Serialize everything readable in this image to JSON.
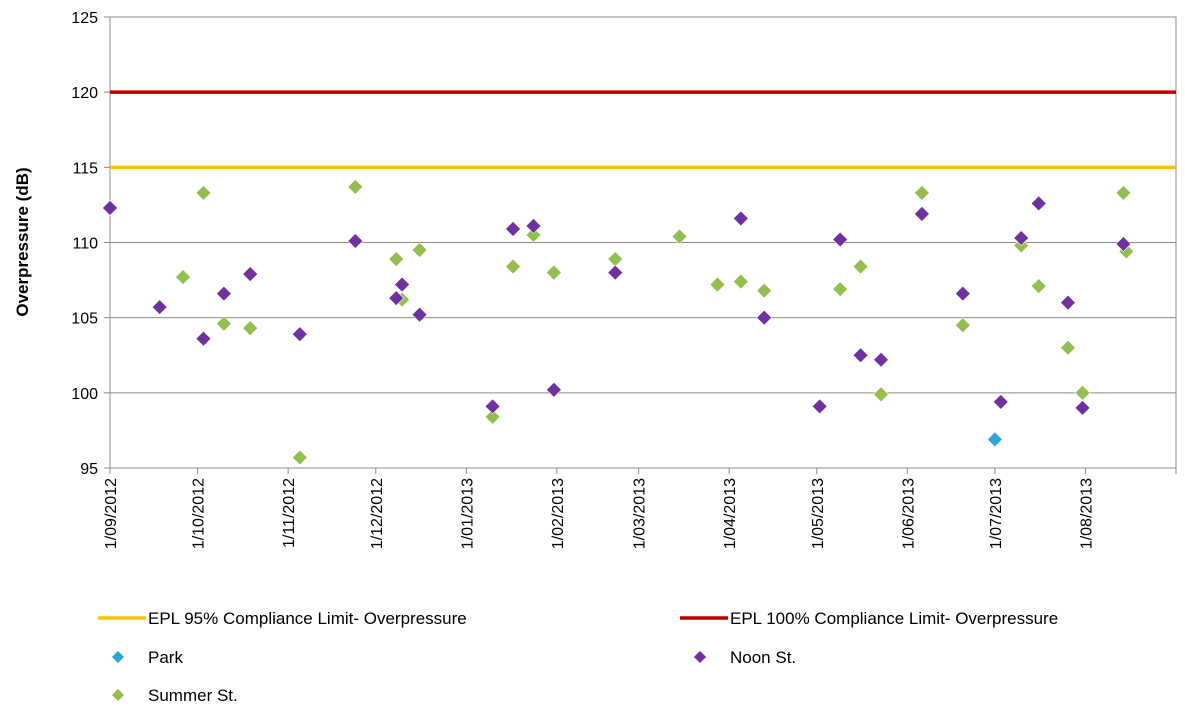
{
  "chart_data": {
    "type": "scatter",
    "title": "",
    "xlabel": "",
    "ylabel": "Overpressure (dB)",
    "x_axis": {
      "type": "date",
      "range": [
        "2012-09-01",
        "2013-09-01"
      ],
      "tick_labels": [
        "1/09/2012",
        "1/10/2012",
        "1/11/2012",
        "1/12/2012",
        "1/01/2013",
        "1/02/2013",
        "1/03/2013",
        "1/04/2013",
        "1/05/2013",
        "1/06/2013",
        "1/07/2013",
        "1/08/2013"
      ],
      "tick_dates": [
        "2012-09-01",
        "2012-10-01",
        "2012-11-01",
        "2012-12-01",
        "2013-01-01",
        "2013-02-01",
        "2013-03-01",
        "2013-04-01",
        "2013-05-01",
        "2013-06-01",
        "2013-07-01",
        "2013-08-01"
      ]
    },
    "y_axis": {
      "range": [
        95,
        125
      ],
      "ticks": [
        95,
        100,
        105,
        110,
        115,
        120,
        125
      ],
      "grid": true
    },
    "limit_lines": [
      {
        "name": "EPL 95% Compliance Limit- Overpressure",
        "y": 115,
        "color": "#FFC000"
      },
      {
        "name": "EPL 100% Compliance Limit- Overpressure",
        "y": 120,
        "color": "#C00000"
      }
    ],
    "series": [
      {
        "name": "Park",
        "color": "#2FA4D9",
        "marker": "diamond",
        "points": [
          {
            "x": "2013-07-01",
            "y": 96.9
          }
        ]
      },
      {
        "name": "Noon St.",
        "color": "#7030A0",
        "marker": "diamond",
        "points": [
          {
            "x": "2012-09-01",
            "y": 112.3
          },
          {
            "x": "2012-09-18",
            "y": 105.7
          },
          {
            "x": "2012-10-03",
            "y": 103.6
          },
          {
            "x": "2012-10-10",
            "y": 106.6
          },
          {
            "x": "2012-10-19",
            "y": 107.9
          },
          {
            "x": "2012-11-05",
            "y": 103.9
          },
          {
            "x": "2012-11-24",
            "y": 110.1
          },
          {
            "x": "2012-12-08",
            "y": 106.3
          },
          {
            "x": "2012-12-10",
            "y": 107.2
          },
          {
            "x": "2012-12-16",
            "y": 105.2
          },
          {
            "x": "2013-01-10",
            "y": 99.1
          },
          {
            "x": "2013-01-17",
            "y": 110.9
          },
          {
            "x": "2013-01-24",
            "y": 111.1
          },
          {
            "x": "2013-01-31",
            "y": 100.2
          },
          {
            "x": "2013-02-21",
            "y": 108.0
          },
          {
            "x": "2013-04-05",
            "y": 111.6
          },
          {
            "x": "2013-04-13",
            "y": 105.0
          },
          {
            "x": "2013-05-02",
            "y": 99.1
          },
          {
            "x": "2013-05-09",
            "y": 110.2
          },
          {
            "x": "2013-05-16",
            "y": 102.5
          },
          {
            "x": "2013-05-23",
            "y": 102.2
          },
          {
            "x": "2013-06-06",
            "y": 111.9
          },
          {
            "x": "2013-06-20",
            "y": 106.6
          },
          {
            "x": "2013-07-03",
            "y": 99.4
          },
          {
            "x": "2013-07-10",
            "y": 110.3
          },
          {
            "x": "2013-07-16",
            "y": 112.6
          },
          {
            "x": "2013-07-26",
            "y": 106.0
          },
          {
            "x": "2013-07-31",
            "y": 99.0
          },
          {
            "x": "2013-08-14",
            "y": 109.9
          }
        ]
      },
      {
        "name": "Summer St.",
        "color": "#92BF4E",
        "marker": "diamond",
        "points": [
          {
            "x": "2012-09-01",
            "y": 112.3
          },
          {
            "x": "2012-09-26",
            "y": 107.7
          },
          {
            "x": "2012-10-03",
            "y": 113.3
          },
          {
            "x": "2012-10-10",
            "y": 104.6
          },
          {
            "x": "2012-10-19",
            "y": 104.3
          },
          {
            "x": "2012-11-05",
            "y": 95.7
          },
          {
            "x": "2012-11-24",
            "y": 113.7
          },
          {
            "x": "2012-12-08",
            "y": 108.9
          },
          {
            "x": "2012-12-10",
            "y": 106.2
          },
          {
            "x": "2012-12-16",
            "y": 109.5
          },
          {
            "x": "2013-01-10",
            "y": 98.4
          },
          {
            "x": "2013-01-17",
            "y": 108.4
          },
          {
            "x": "2013-01-24",
            "y": 110.5
          },
          {
            "x": "2013-01-31",
            "y": 108.0
          },
          {
            "x": "2013-02-21",
            "y": 108.9
          },
          {
            "x": "2013-03-15",
            "y": 110.4
          },
          {
            "x": "2013-03-28",
            "y": 107.2
          },
          {
            "x": "2013-04-05",
            "y": 107.4
          },
          {
            "x": "2013-04-13",
            "y": 106.8
          },
          {
            "x": "2013-05-09",
            "y": 106.9
          },
          {
            "x": "2013-05-16",
            "y": 108.4
          },
          {
            "x": "2013-05-23",
            "y": 99.9
          },
          {
            "x": "2013-06-06",
            "y": 113.3
          },
          {
            "x": "2013-06-20",
            "y": 104.5
          },
          {
            "x": "2013-07-10",
            "y": 109.8
          },
          {
            "x": "2013-07-16",
            "y": 107.1
          },
          {
            "x": "2013-07-26",
            "y": 103.0
          },
          {
            "x": "2013-07-31",
            "y": 100.0
          },
          {
            "x": "2013-08-14",
            "y": 113.3
          },
          {
            "x": "2013-08-15",
            "y": 109.4
          }
        ]
      }
    ],
    "legend": {
      "position": "bottom",
      "entries": [
        {
          "label": "EPL 95% Compliance Limit- Overpressure",
          "kind": "line",
          "color": "#FFC000"
        },
        {
          "label": "EPL 100% Compliance Limit- Overpressure",
          "kind": "line",
          "color": "#C00000"
        },
        {
          "label": "Park",
          "kind": "diamond",
          "color": "#2FA4D9"
        },
        {
          "label": "Noon St.",
          "kind": "diamond",
          "color": "#7030A0"
        },
        {
          "label": "Summer St.",
          "kind": "diamond",
          "color": "#92BF4E"
        }
      ]
    }
  }
}
